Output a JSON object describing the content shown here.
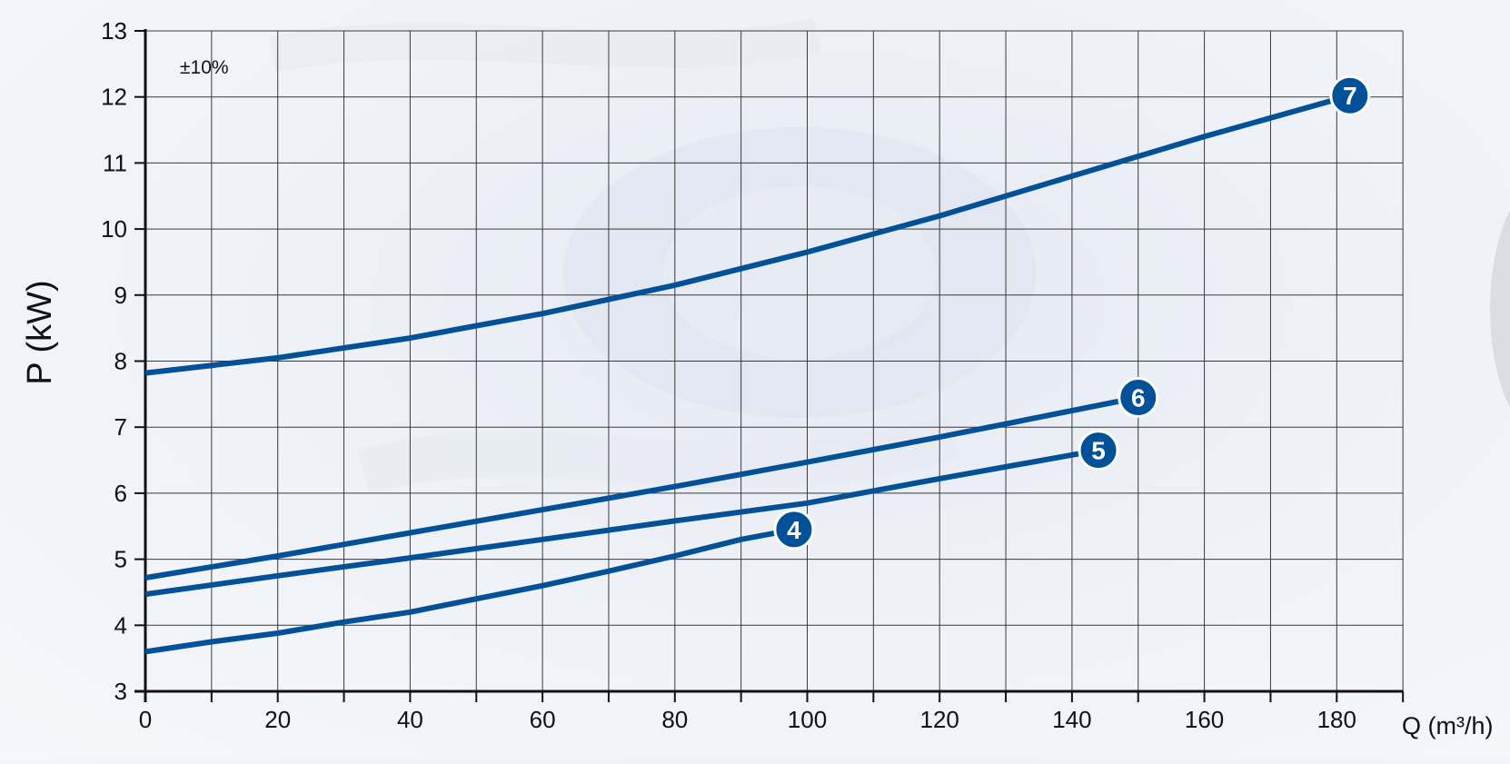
{
  "chart_data": {
    "type": "line",
    "title": "",
    "xlabel": "Q (m³/h)",
    "ylabel": "P (kW)",
    "annotation": "±10%",
    "xlim": [
      0,
      190
    ],
    "ylim": [
      3,
      13
    ],
    "x_ticks": [
      0,
      20,
      40,
      60,
      80,
      100,
      120,
      140,
      160,
      180
    ],
    "y_ticks": [
      3,
      4,
      5,
      6,
      7,
      8,
      9,
      10,
      11,
      12,
      13
    ],
    "grid": true,
    "line_color": "#005198",
    "series": [
      {
        "name": "4",
        "x": [
          0,
          10,
          20,
          30,
          40,
          50,
          60,
          70,
          80,
          90,
          98
        ],
        "y": [
          3.6,
          3.75,
          3.88,
          4.05,
          4.2,
          4.4,
          4.6,
          4.82,
          5.05,
          5.3,
          5.45
        ]
      },
      {
        "name": "5",
        "x": [
          0,
          20,
          40,
          60,
          80,
          100,
          120,
          144
        ],
        "y": [
          4.47,
          4.75,
          5.02,
          5.3,
          5.58,
          5.85,
          6.22,
          6.65
        ]
      },
      {
        "name": "6",
        "x": [
          0,
          20,
          40,
          60,
          80,
          100,
          120,
          150
        ],
        "y": [
          4.72,
          5.05,
          5.4,
          5.75,
          6.1,
          6.47,
          6.85,
          7.45
        ]
      },
      {
        "name": "7",
        "x": [
          0,
          20,
          40,
          60,
          80,
          100,
          120,
          140,
          160,
          182
        ],
        "y": [
          7.82,
          8.05,
          8.35,
          8.72,
          9.15,
          9.65,
          10.2,
          10.8,
          11.4,
          12.02
        ]
      }
    ]
  }
}
